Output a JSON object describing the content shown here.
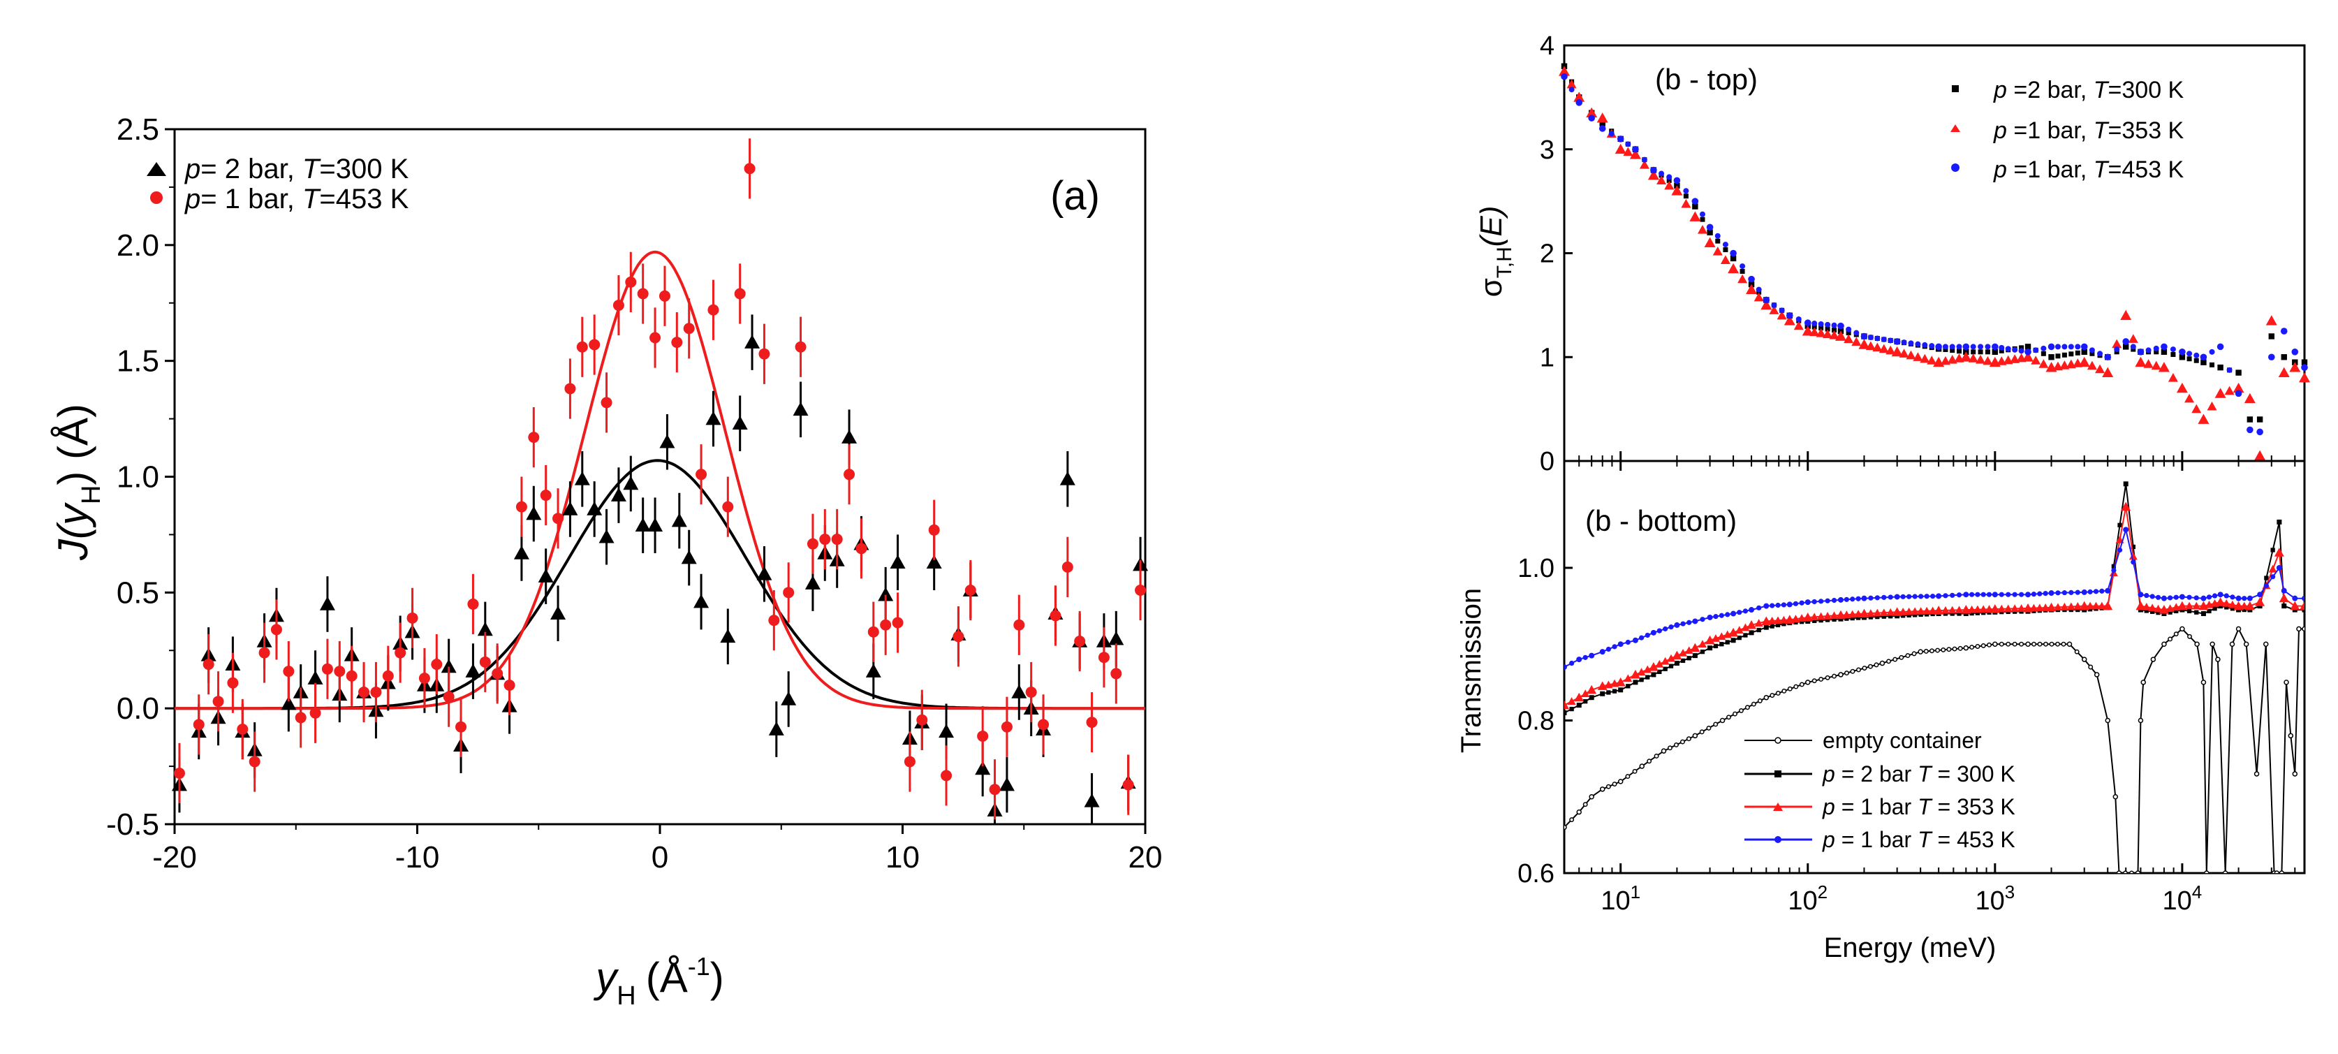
{
  "chart_data": [
    {
      "type": "scatter",
      "panel_label": "(a)",
      "xlabel": "y",
      "xlabel_sub": "H",
      "xlabel_unit": "(Å",
      "xlabel_unit_sup": "-1",
      "xlabel_unit_close": ")",
      "ylabel": "J(y",
      "ylabel_sub": "H",
      "ylabel_unit": ") (Å)",
      "xlim": [
        -20,
        20
      ],
      "ylim": [
        -0.5,
        2.5
      ],
      "xticks": [
        "-20",
        "-10",
        "0",
        "10",
        "20"
      ],
      "xtick_values": [
        -20,
        -10,
        0,
        10,
        20
      ],
      "yticks": [
        "-0.5",
        "0.0",
        "0.5",
        "1.0",
        "1.5",
        "2.0",
        "2.5"
      ],
      "ytick_values": [
        -0.5,
        0,
        0.5,
        1,
        1.5,
        2,
        2.5
      ],
      "legend_position": "top-left",
      "series": [
        {
          "name": "p= 2 bar, T=300 K",
          "legend_p": "p",
          "legend_mid": "= 2 bar, ",
          "legend_T": "T",
          "legend_end": "=300 K",
          "marker": "triangle",
          "color": "#000000",
          "err": 0.12,
          "x": [
            -19.8,
            -19,
            -18.6,
            -18.2,
            -17.6,
            -17.2,
            -16.7,
            -16.3,
            -15.8,
            -15.3,
            -14.8,
            -14.2,
            -13.7,
            -13.2,
            -12.7,
            -12.2,
            -11.7,
            -11.2,
            -10.7,
            -10.2,
            -9.7,
            -9.2,
            -8.7,
            -8.2,
            -7.7,
            -7.2,
            -6.7,
            -6.2,
            -5.7,
            -5.2,
            -4.7,
            -4.2,
            -3.7,
            -3.2,
            -2.7,
            -2.2,
            -1.7,
            -1.2,
            -0.7,
            -0.2,
            0.3,
            0.8,
            1.2,
            1.7,
            2.2,
            2.8,
            3.3,
            3.8,
            4.3,
            4.8,
            5.3,
            5.8,
            6.3,
            6.8,
            7.3,
            7.8,
            8.3,
            8.8,
            9.3,
            9.8,
            10.3,
            10.8,
            11.3,
            11.8,
            12.3,
            12.8,
            13.3,
            13.8,
            14.3,
            14.8,
            15.3,
            15.8,
            16.3,
            16.8,
            17.3,
            17.8,
            18.3,
            18.8,
            19.3,
            19.8
          ],
          "y": [
            -0.33,
            -0.1,
            0.23,
            -0.04,
            0.19,
            -0.1,
            -0.18,
            0.29,
            0.4,
            0.02,
            0.07,
            0.13,
            0.45,
            0.06,
            0.23,
            0.07,
            -0.01,
            0.11,
            0.28,
            0.33,
            0.1,
            0.1,
            0.18,
            -0.16,
            0.16,
            0.34,
            0.15,
            0.01,
            0.67,
            0.84,
            0.57,
            0.41,
            0.86,
            0.99,
            0.86,
            0.74,
            0.92,
            0.97,
            0.79,
            0.79,
            1.15,
            0.81,
            0.65,
            0.46,
            1.25,
            0.31,
            1.23,
            1.58,
            0.58,
            -0.09,
            0.04,
            1.29,
            0.54,
            0.67,
            0.64,
            1.17,
            0.71,
            0.16,
            0.49,
            0.63,
            -0.13,
            -0.06,
            0.63,
            -0.1,
            0.32,
            0.51,
            -0.26,
            -0.44,
            -0.33,
            0.07,
            0.0,
            -0.09,
            0.41,
            0.99,
            0.29,
            -0.4,
            0.29,
            0.3,
            -0.32,
            0.62
          ],
          "fit": {
            "type": "gaussian",
            "amplitude": 1.07,
            "center": -0.1,
            "sigma": 3.65
          }
        },
        {
          "name": "p= 1 bar, T=453 K",
          "legend_p": "p",
          "legend_mid": "= 1 bar, ",
          "legend_T": "T",
          "legend_end": "=453 K",
          "marker": "circle",
          "color": "#ee1c1c",
          "err": 0.13,
          "x": [
            -19.8,
            -19,
            -18.6,
            -18.2,
            -17.6,
            -17.2,
            -16.7,
            -16.3,
            -15.8,
            -15.3,
            -14.8,
            -14.2,
            -13.7,
            -13.2,
            -12.7,
            -12.2,
            -11.7,
            -11.2,
            -10.7,
            -10.2,
            -9.7,
            -9.2,
            -8.7,
            -8.2,
            -7.7,
            -7.2,
            -6.7,
            -6.2,
            -5.7,
            -5.2,
            -4.7,
            -4.2,
            -3.7,
            -3.2,
            -2.7,
            -2.2,
            -1.7,
            -1.2,
            -0.7,
            -0.2,
            0.2,
            0.7,
            1.2,
            1.7,
            2.2,
            2.8,
            3.3,
            3.7,
            4.3,
            4.7,
            5.3,
            5.8,
            6.3,
            6.8,
            7.3,
            7.8,
            8.3,
            8.8,
            9.3,
            9.8,
            10.3,
            10.8,
            11.3,
            11.8,
            12.3,
            12.8,
            13.3,
            13.8,
            14.3,
            14.8,
            15.3,
            15.8,
            16.3,
            16.8,
            17.3,
            17.8,
            18.3,
            18.8,
            19.3,
            19.8
          ],
          "y": [
            -0.28,
            -0.07,
            0.19,
            0.03,
            0.11,
            -0.09,
            -0.23,
            0.24,
            0.34,
            0.16,
            -0.04,
            -0.02,
            0.17,
            0.16,
            0.14,
            0.07,
            0.07,
            0.14,
            0.24,
            0.39,
            0.13,
            0.19,
            0.05,
            -0.08,
            0.45,
            0.2,
            0.15,
            0.1,
            0.87,
            1.17,
            0.92,
            0.82,
            1.38,
            1.56,
            1.57,
            1.32,
            1.74,
            1.84,
            1.79,
            1.6,
            1.78,
            1.58,
            1.64,
            1.01,
            1.72,
            0.87,
            1.79,
            2.33,
            1.53,
            0.38,
            0.5,
            1.56,
            0.71,
            0.73,
            0.73,
            1.01,
            0.69,
            0.33,
            0.36,
            0.37,
            -0.23,
            -0.05,
            0.77,
            -0.29,
            0.31,
            0.51,
            -0.12,
            -0.35,
            -0.08,
            0.36,
            0.07,
            -0.07,
            0.4,
            0.61,
            0.29,
            -0.06,
            0.22,
            0.15,
            -0.33,
            0.51
          ],
          "fit": {
            "type": "gaussian",
            "amplitude": 1.97,
            "center": -0.2,
            "sigma": 2.9
          }
        }
      ]
    },
    {
      "type": "scatter",
      "panel_label": "(b - top)",
      "ylabel": "σ",
      "ylabel_sub": "T,H",
      "ylabel_unit": "(E)",
      "xscale": "log",
      "xlim": [
        5,
        45000
      ],
      "ylim": [
        0,
        4
      ],
      "yticks": [
        "0",
        "1",
        "2",
        "3",
        "4"
      ],
      "ytick_values": [
        0,
        1,
        2,
        3,
        4
      ],
      "legend_position": "top-right",
      "x": [
        5,
        6,
        7,
        8,
        10,
        12,
        15,
        20,
        25,
        30,
        40,
        50,
        60,
        80,
        100,
        150,
        200,
        300,
        500,
        700,
        1000,
        1500,
        2000,
        3000,
        4000,
        5000,
        6000,
        8000,
        10000,
        13000,
        16000,
        20000,
        23000,
        26000,
        30000,
        35000,
        40000,
        45000
      ],
      "series": [
        {
          "name": "p =2 bar, T=300 K",
          "legend_p": "p",
          "legend_mid": " =2 bar, ",
          "legend_T": "T",
          "legend_end": "=300 K",
          "marker": "square",
          "color": "#000000",
          "y": [
            3.8,
            3.5,
            3.35,
            3.25,
            3.1,
            3.0,
            2.8,
            2.65,
            2.45,
            2.2,
            1.95,
            1.7,
            1.55,
            1.4,
            1.3,
            1.25,
            1.2,
            1.15,
            1.08,
            1.05,
            1.05,
            1.1,
            1.0,
            1.05,
            1.0,
            1.1,
            1.05,
            1.05,
            1.0,
            0.95,
            0.9,
            0.85,
            0.4,
            0.4,
            1.2,
            1.0,
            0.95,
            0.95
          ]
        },
        {
          "name": "p =1 bar, T=353 K",
          "legend_p": "p",
          "legend_mid": " =1 bar, ",
          "legend_T": "T",
          "legend_end": "=353 K",
          "marker": "triangle",
          "color": "#ff1a1a",
          "y": [
            3.75,
            3.5,
            3.35,
            3.3,
            3.0,
            2.95,
            2.75,
            2.6,
            2.35,
            2.1,
            1.85,
            1.65,
            1.5,
            1.35,
            1.25,
            1.2,
            1.12,
            1.05,
            0.95,
            1.0,
            0.95,
            1.0,
            0.9,
            0.95,
            0.85,
            1.4,
            0.95,
            0.9,
            0.7,
            0.4,
            0.65,
            0.7,
            0.6,
            0.05,
            1.35,
            0.85,
            0.9,
            0.8
          ]
        },
        {
          "name": "p =1 bar, T=453 K",
          "legend_p": "p",
          "legend_mid": " =1 bar, ",
          "legend_T": "T",
          "legend_end": "=453 K",
          "marker": "circle",
          "color": "#1a1aff",
          "y": [
            3.7,
            3.45,
            3.3,
            3.2,
            3.1,
            3.0,
            2.8,
            2.7,
            2.5,
            2.25,
            2.0,
            1.75,
            1.55,
            1.4,
            1.33,
            1.3,
            1.2,
            1.15,
            1.1,
            1.1,
            1.1,
            1.05,
            1.1,
            1.1,
            1.0,
            1.15,
            1.05,
            1.1,
            1.05,
            1.0,
            1.1,
            0.65,
            0.3,
            0.28,
            1.0,
            1.25,
            1.05,
            0.9
          ]
        }
      ]
    },
    {
      "type": "line",
      "panel_label": "(b - bottom)",
      "xlabel": "Energy (meV)",
      "ylabel": "Transmission",
      "xscale": "log",
      "xlim": [
        5,
        45000
      ],
      "ylim": [
        0.6,
        1.14
      ],
      "xtick_values": [
        10,
        100,
        1000,
        10000
      ],
      "xtick_base": "10",
      "xtick_exps": [
        "1",
        "2",
        "3",
        "4"
      ],
      "yticks": [
        "0.6",
        "0.8",
        "1.0"
      ],
      "ytick_values": [
        0.6,
        0.8,
        1.0
      ],
      "legend_position": "bottom-center",
      "series": [
        {
          "name": "empty container",
          "legend_text": "empty container",
          "marker": "open-circle",
          "color": "#000000",
          "x": [
            5,
            6,
            7,
            8,
            10,
            13,
            17,
            25,
            35,
            60,
            100,
            150,
            250,
            400,
            700,
            1000,
            1500,
            2500,
            3000,
            3500,
            4000,
            4400,
            4600,
            5800,
            6000,
            6200,
            7000,
            8000,
            10000,
            12000,
            13000,
            13500,
            14500,
            15500,
            17000,
            18500,
            20000,
            22000,
            25000,
            28000,
            31000,
            32000,
            34000,
            36000,
            38000,
            40000,
            42000,
            45000
          ],
          "y": [
            0.66,
            0.68,
            0.7,
            0.71,
            0.72,
            0.74,
            0.76,
            0.78,
            0.8,
            0.83,
            0.85,
            0.86,
            0.875,
            0.89,
            0.895,
            0.9,
            0.9,
            0.9,
            0.88,
            0.86,
            0.8,
            0.7,
            0.6,
            0.6,
            0.8,
            0.85,
            0.88,
            0.9,
            0.92,
            0.9,
            0.85,
            0.6,
            0.9,
            0.88,
            0.6,
            0.9,
            0.92,
            0.9,
            0.73,
            0.9,
            0.6,
            0.6,
            0.6,
            0.85,
            0.78,
            0.73,
            0.92,
            0.92
          ]
        },
        {
          "name": "p = 2 bar T = 300 K",
          "legend_p": "p",
          "legend_mid": " = 2 bar ",
          "legend_T": "T",
          "legend_end": " = 300 K",
          "marker": "square",
          "color": "#000000",
          "x": [
            5,
            6,
            7,
            8,
            10,
            12,
            15,
            20,
            25,
            30,
            40,
            50,
            60,
            80,
            100,
            150,
            200,
            300,
            500,
            700,
            1000,
            1500,
            2000,
            3000,
            4000,
            5000,
            6000,
            8000,
            10000,
            13000,
            16000,
            20000,
            23000,
            26000,
            33000,
            35000,
            40000,
            45000
          ],
          "y": [
            0.81,
            0.82,
            0.83,
            0.835,
            0.84,
            0.85,
            0.86,
            0.875,
            0.885,
            0.895,
            0.905,
            0.915,
            0.922,
            0.928,
            0.93,
            0.933,
            0.935,
            0.937,
            0.94,
            0.94,
            0.942,
            0.943,
            0.945,
            0.945,
            0.948,
            1.11,
            0.945,
            0.94,
            0.945,
            0.94,
            0.95,
            0.945,
            0.945,
            0.95,
            1.06,
            0.95,
            0.945,
            0.945
          ]
        },
        {
          "name": "p = 1 bar T = 353 K",
          "legend_p": "p",
          "legend_mid": " = 1 bar ",
          "legend_T": "T",
          "legend_end": " = 353 K",
          "marker": "triangle",
          "color": "#ff1a1a",
          "x": [
            5,
            6,
            7,
            8,
            10,
            12,
            15,
            20,
            25,
            30,
            40,
            50,
            60,
            80,
            100,
            150,
            200,
            300,
            500,
            700,
            1000,
            1500,
            2000,
            3000,
            4000,
            5000,
            6000,
            8000,
            10000,
            13000,
            16000,
            20000,
            23000,
            26000,
            33000,
            35000,
            40000,
            45000
          ],
          "y": [
            0.82,
            0.83,
            0.84,
            0.845,
            0.85,
            0.86,
            0.87,
            0.885,
            0.895,
            0.905,
            0.915,
            0.925,
            0.93,
            0.932,
            0.935,
            0.938,
            0.94,
            0.942,
            0.944,
            0.945,
            0.946,
            0.947,
            0.948,
            0.95,
            0.95,
            1.08,
            0.95,
            0.945,
            0.95,
            0.95,
            0.955,
            0.95,
            0.95,
            0.955,
            1.02,
            0.96,
            0.95,
            0.95
          ]
        },
        {
          "name": "p = 1 bar T = 453 K",
          "legend_p": "p",
          "legend_mid": " = 1 bar ",
          "legend_T": "T",
          "legend_end": " = 453 K",
          "marker": "circle",
          "color": "#1a1aff",
          "x": [
            5,
            6,
            7,
            8,
            10,
            12,
            15,
            20,
            25,
            30,
            40,
            50,
            60,
            80,
            100,
            150,
            200,
            300,
            500,
            700,
            1000,
            1500,
            2000,
            3000,
            4000,
            5000,
            6000,
            8000,
            10000,
            13000,
            16000,
            20000,
            23000,
            26000,
            33000,
            35000,
            40000,
            45000
          ],
          "y": [
            0.87,
            0.88,
            0.885,
            0.89,
            0.9,
            0.905,
            0.915,
            0.925,
            0.93,
            0.935,
            0.94,
            0.945,
            0.95,
            0.952,
            0.955,
            0.958,
            0.96,
            0.962,
            0.963,
            0.965,
            0.965,
            0.965,
            0.967,
            0.968,
            0.97,
            1.05,
            0.965,
            0.96,
            0.962,
            0.96,
            0.965,
            0.96,
            0.96,
            0.965,
            1.0,
            0.97,
            0.96,
            0.96
          ]
        }
      ]
    }
  ]
}
